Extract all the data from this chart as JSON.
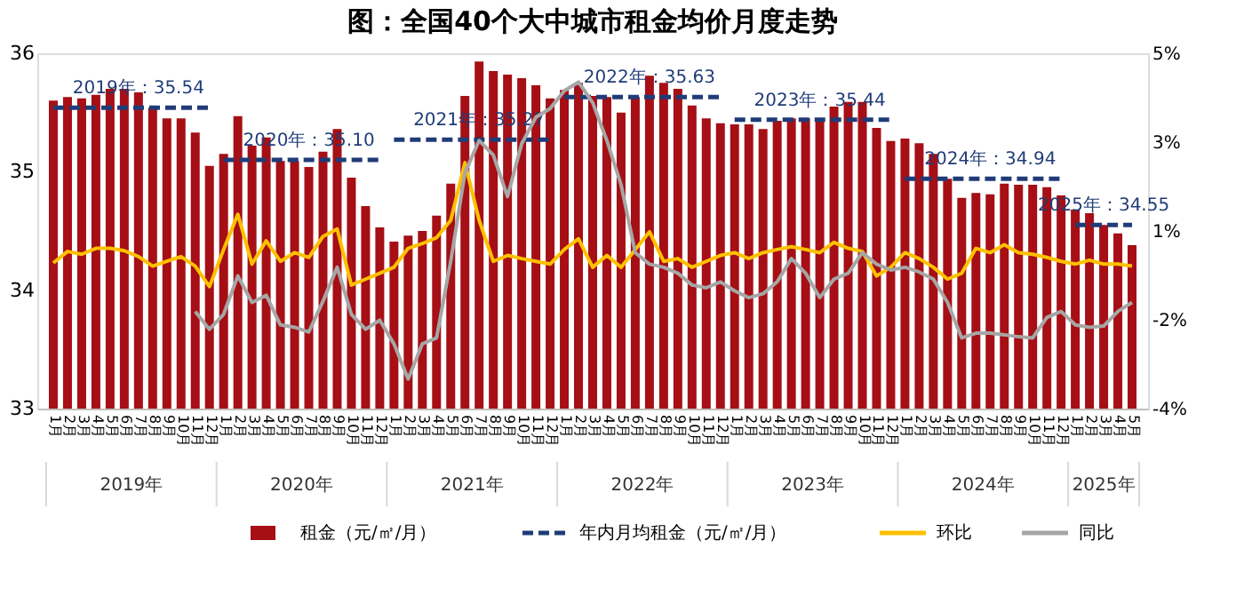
{
  "chart_data": {
    "type": "bar",
    "title": "图：全国40个大中城市租金均价月度走势",
    "categories": [
      "1月",
      "2月",
      "3月",
      "4月",
      "5月",
      "6月",
      "7月",
      "8月",
      "9月",
      "10月",
      "11月",
      "12月",
      "1月",
      "2月",
      "3月",
      "4月",
      "5月",
      "6月",
      "7月",
      "8月",
      "9月",
      "10月",
      "11月",
      "12月",
      "1月",
      "2月",
      "3月",
      "4月",
      "5月",
      "6月",
      "7月",
      "8月",
      "9月",
      "10月",
      "11月",
      "12月",
      "1月",
      "2月",
      "3月",
      "4月",
      "5月",
      "6月",
      "7月",
      "8月",
      "9月",
      "10月",
      "11月",
      "12月",
      "1月",
      "2月",
      "3月",
      "4月",
      "5月",
      "6月",
      "7月",
      "8月",
      "9月",
      "10月",
      "11月",
      "12月",
      "1月",
      "2月",
      "3月",
      "4月",
      "5月",
      "6月",
      "7月",
      "8月",
      "9月",
      "10月",
      "11月",
      "12月",
      "1月",
      "2月",
      "3月",
      "4月",
      "5月"
    ],
    "series": [
      {
        "name": "租金（元/㎡/月）",
        "color": "#a50f15",
        "values": [
          35.6,
          35.63,
          35.62,
          35.65,
          35.7,
          35.7,
          35.67,
          35.54,
          35.45,
          35.45,
          35.33,
          35.05,
          35.15,
          35.47,
          35.22,
          35.29,
          35.09,
          35.09,
          35.04,
          35.17,
          35.36,
          34.95,
          34.71,
          34.53,
          34.41,
          34.46,
          34.5,
          34.63,
          34.9,
          35.64,
          35.93,
          35.85,
          35.82,
          35.79,
          35.73,
          35.62,
          35.69,
          35.75,
          35.64,
          35.63,
          35.5,
          35.63,
          35.81,
          35.75,
          35.7,
          35.56,
          35.45,
          35.41,
          35.4,
          35.4,
          35.36,
          35.43,
          35.45,
          35.45,
          35.44,
          35.55,
          35.59,
          35.59,
          35.37,
          35.26,
          35.28,
          35.24,
          35.15,
          34.94,
          34.78,
          34.82,
          34.81,
          34.9,
          34.89,
          34.89,
          34.87,
          34.8,
          34.68,
          34.65,
          34.55,
          34.48,
          34.38
        ]
      },
      {
        "name": "年内月均租金（元/㎡/月）",
        "type": "line",
        "line_style": "dashed",
        "color": "#1f3c78",
        "values": [
          35.54,
          35.54,
          35.54,
          35.54,
          35.54,
          35.54,
          35.54,
          35.54,
          35.54,
          35.54,
          35.54,
          35.54,
          35.1,
          35.1,
          35.1,
          35.1,
          35.1,
          35.1,
          35.1,
          35.1,
          35.1,
          35.1,
          35.1,
          35.1,
          35.27,
          35.27,
          35.27,
          35.27,
          35.27,
          35.27,
          35.27,
          35.27,
          35.27,
          35.27,
          35.27,
          35.27,
          35.63,
          35.63,
          35.63,
          35.63,
          35.63,
          35.63,
          35.63,
          35.63,
          35.63,
          35.63,
          35.63,
          35.63,
          35.44,
          35.44,
          35.44,
          35.44,
          35.44,
          35.44,
          35.44,
          35.44,
          35.44,
          35.44,
          35.44,
          35.44,
          34.94,
          34.94,
          34.94,
          34.94,
          34.94,
          34.94,
          34.94,
          34.94,
          34.94,
          34.94,
          34.94,
          34.94,
          34.55,
          34.55,
          34.55,
          34.55,
          34.55
        ],
        "value_labels": [
          null,
          null,
          null,
          null,
          null,
          null,
          "2019年：35.54",
          null,
          null,
          null,
          null,
          null,
          null,
          null,
          null,
          null,
          null,
          null,
          "2020年：35.10",
          null,
          null,
          null,
          null,
          null,
          null,
          null,
          null,
          null,
          null,
          null,
          "2021年：35.27",
          null,
          null,
          null,
          null,
          null,
          null,
          null,
          null,
          null,
          null,
          null,
          "2022年：35.63",
          null,
          null,
          null,
          null,
          null,
          null,
          null,
          null,
          null,
          null,
          null,
          "2023年：35.44",
          null,
          null,
          null,
          null,
          null,
          null,
          null,
          null,
          null,
          null,
          null,
          "2024年：34.94",
          null,
          null,
          null,
          null,
          null,
          null,
          null,
          "2025年：34.55",
          null,
          null
        ]
      },
      {
        "name": "环比",
        "type": "line",
        "axis": "y2",
        "line_style": "solid",
        "color": "#ffc000",
        "values": [
          -0.31,
          -0.02,
          -0.09,
          0.06,
          0.06,
          0.0,
          -0.15,
          -0.39,
          -0.27,
          -0.15,
          -0.39,
          -0.91,
          0.03,
          0.92,
          -0.34,
          0.25,
          -0.27,
          -0.05,
          -0.17,
          0.36,
          0.55,
          -0.87,
          -0.72,
          -0.57,
          -0.42,
          0.06,
          0.18,
          0.33,
          0.77,
          2.23,
          0.77,
          -0.27,
          -0.12,
          -0.2,
          -0.27,
          -0.34,
          0.03,
          0.3,
          -0.42,
          -0.12,
          -0.42,
          0.03,
          0.48,
          -0.27,
          -0.2,
          -0.42,
          -0.27,
          -0.12,
          -0.05,
          -0.2,
          -0.05,
          0.03,
          0.1,
          0.03,
          -0.05,
          0.21,
          0.06,
          -0.02,
          -0.64,
          -0.42,
          -0.05,
          -0.2,
          -0.42,
          -0.72,
          -0.57,
          0.06,
          -0.05,
          0.15,
          -0.05,
          -0.09,
          -0.17,
          -0.27,
          -0.34,
          -0.24,
          -0.34,
          -0.34,
          -0.39
        ]
      },
      {
        "name": "同比",
        "type": "line",
        "axis": "y2",
        "line_style": "solid",
        "color": "#a6a6a6",
        "values": [
          null,
          null,
          null,
          null,
          null,
          null,
          null,
          null,
          null,
          null,
          -1.54,
          -1.99,
          -1.61,
          -0.64,
          -1.31,
          -1.13,
          -1.88,
          -1.94,
          -2.06,
          -1.28,
          -0.42,
          -1.61,
          -1.99,
          -1.76,
          -2.36,
          -3.25,
          -2.36,
          -2.21,
          -0.27,
          1.97,
          2.79,
          2.42,
          1.37,
          2.71,
          3.38,
          3.6,
          4.05,
          4.27,
          3.75,
          2.79,
          1.67,
          -0.05,
          -0.34,
          -0.42,
          -0.57,
          -0.87,
          -0.94,
          -0.79,
          -1.02,
          -1.19,
          -1.09,
          -0.79,
          -0.2,
          -0.57,
          -1.19,
          -0.72,
          -0.57,
          -0.05,
          -0.34,
          -0.49,
          -0.42,
          -0.54,
          -0.72,
          -1.31,
          -2.21,
          -2.09,
          -2.09,
          -2.13,
          -2.18,
          -2.21,
          -1.69,
          -1.54,
          -1.88,
          -1.94,
          -1.91,
          -1.54,
          -1.31
        ]
      }
    ],
    "ylim": [
      33,
      36
    ],
    "yticks": [
      33,
      34,
      35,
      36
    ],
    "y2lim": [
      -4,
      5
    ],
    "y2ticks": [
      {
        "value": -4,
        "label": "-4%"
      },
      {
        "value": -1.75,
        "label": "-2%"
      },
      {
        "value": 0.5,
        "label": "1%"
      },
      {
        "value": 2.75,
        "label": "3%"
      },
      {
        "value": 5,
        "label": "5%"
      }
    ],
    "annotations": [
      "2019年",
      "2020年",
      "2021年",
      "2022年",
      "2023年",
      "2024年",
      "2025年"
    ],
    "grid": false,
    "marker": "none",
    "legend": "bottom"
  }
}
